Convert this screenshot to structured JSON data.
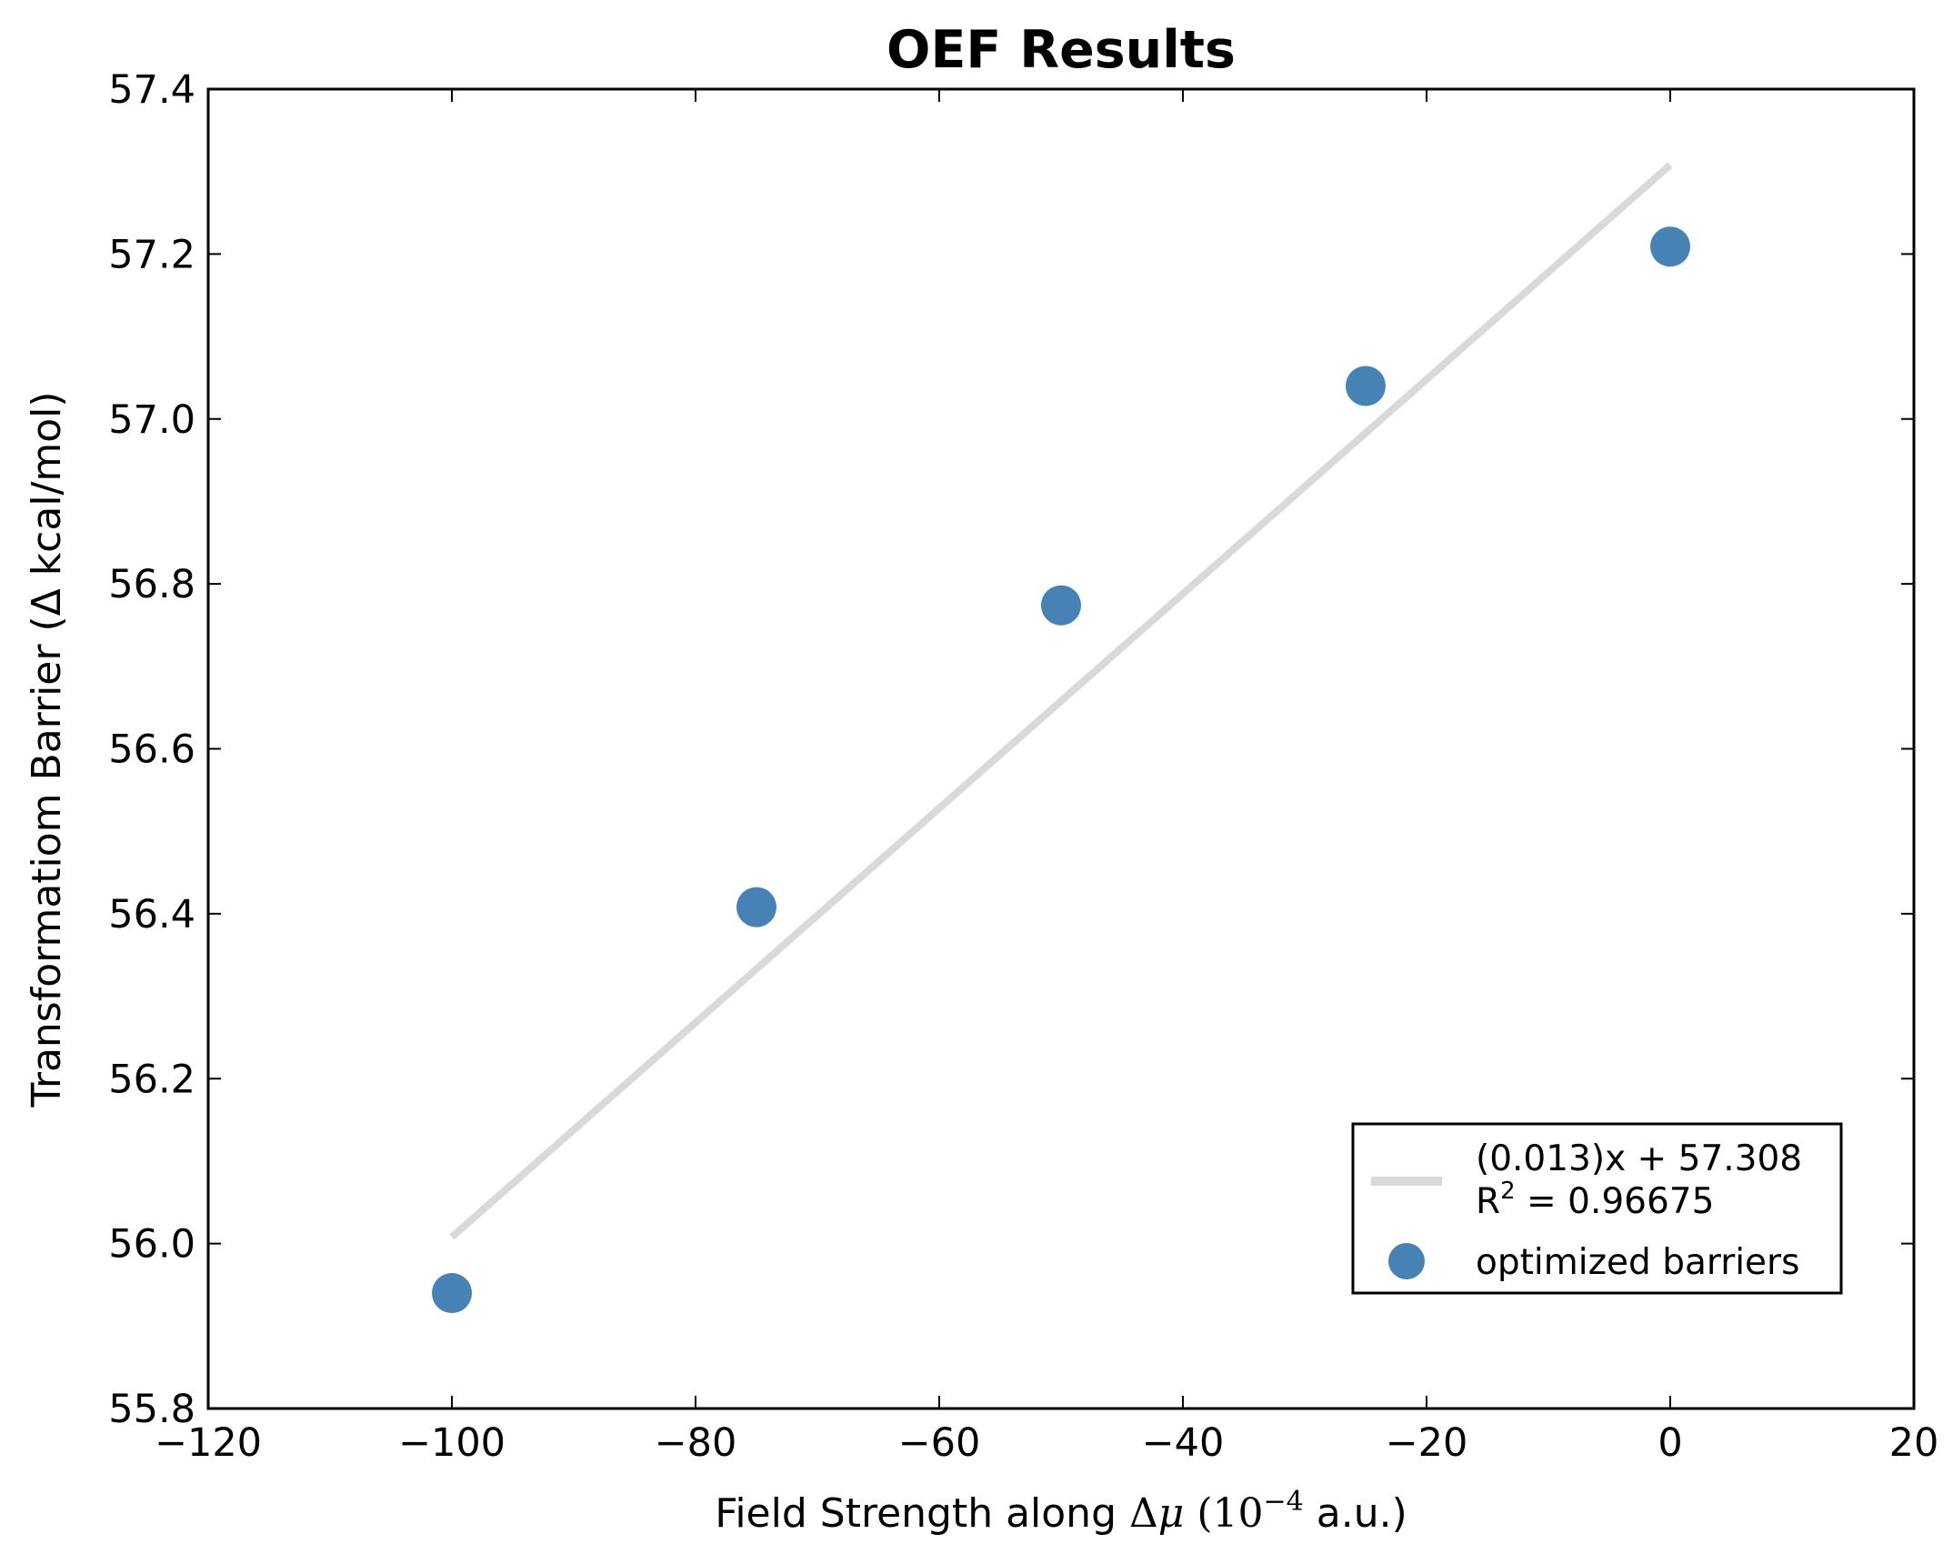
{
  "chart_data": {
    "type": "scatter",
    "title": "OEF Results",
    "xlabel": {
      "prefix": "Field Strength along ",
      "delta": "Δ",
      "mu": "μ",
      "paren_open": " (",
      "base": "10",
      "exponent": "−4",
      "suffix": " a.u.)"
    },
    "ylabel": "Transformatiom Barrier (Δ kcal/mol)",
    "xlim": [
      -120,
      20
    ],
    "ylim": [
      55.8,
      57.4
    ],
    "xticks": [
      -120,
      -100,
      -80,
      -60,
      -40,
      -20,
      0,
      20
    ],
    "xtick_labels": [
      "−120",
      "−100",
      "−80",
      "−60",
      "−40",
      "−20",
      "0",
      "20"
    ],
    "yticks": [
      55.8,
      56.0,
      56.2,
      56.4,
      56.6,
      56.8,
      57.0,
      57.2,
      57.4
    ],
    "ytick_labels": [
      "55.8",
      "56.0",
      "56.2",
      "56.4",
      "56.6",
      "56.8",
      "57.0",
      "57.2",
      "57.4"
    ],
    "grid": false,
    "legend_position": "lower-right",
    "series": [
      {
        "kind": "line",
        "legend_line1": "(0.013)x + 57.308",
        "legend_line2_prefix": "R",
        "legend_line2_sup": "2",
        "legend_line2_suffix": " = 0.96675",
        "color": "#d9d9d9",
        "slope": 0.013,
        "intercept": 57.308,
        "x": [
          -100,
          0
        ]
      },
      {
        "kind": "scatter",
        "name": "optimized barriers",
        "color": "#4682b4",
        "x": [
          -100,
          -75,
          -50,
          -25,
          0
        ],
        "y": [
          55.94,
          56.408,
          56.774,
          57.04,
          57.209
        ]
      }
    ]
  }
}
